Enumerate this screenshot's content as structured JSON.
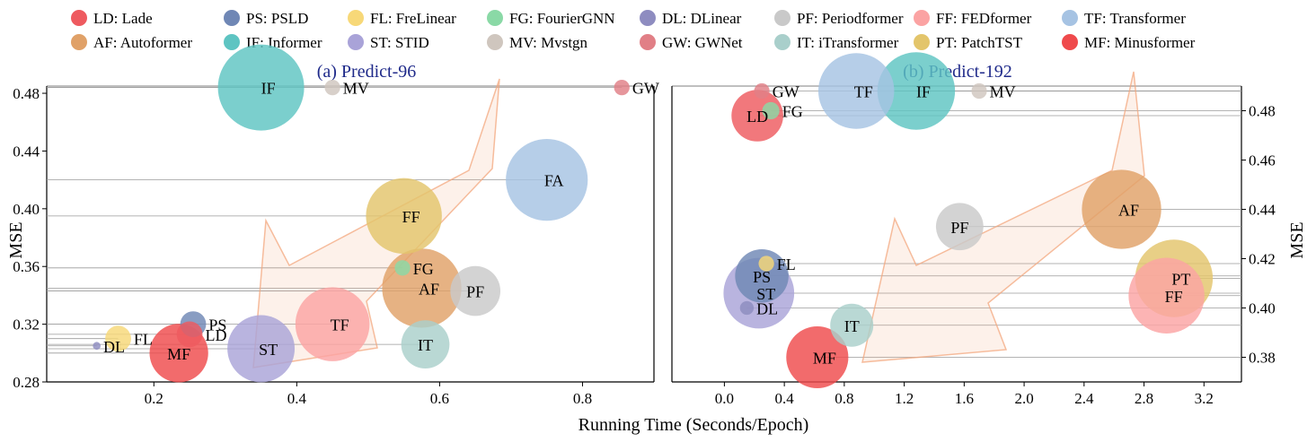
{
  "legend": [
    {
      "code": "LD",
      "label": "LD: Lade",
      "color": "#ee5a5f"
    },
    {
      "code": "PS",
      "label": "PS: PSLD",
      "color": "#6f87b5"
    },
    {
      "code": "FL",
      "label": "FL: FreLinear",
      "color": "#f7d878"
    },
    {
      "code": "FG",
      "label": "FG: FourierGNN",
      "color": "#8ad9a6"
    },
    {
      "code": "DL",
      "label": "DL: DLinear",
      "color": "#8e8cc0"
    },
    {
      "code": "PF",
      "label": "PF: Periodformer",
      "color": "#c9c9c9"
    },
    {
      "code": "FF",
      "label": "FF: FEDformer",
      "color": "#fba3a3"
    },
    {
      "code": "TF",
      "label": "TF: Transformer",
      "color": "#a6c3e3"
    },
    {
      "code": "AF",
      "label": "AF: Autoformer",
      "color": "#e0a168"
    },
    {
      "code": "IF",
      "label": "IF: Informer",
      "color": "#5ec4c2"
    },
    {
      "code": "ST",
      "label": "ST: STID",
      "color": "#a9a3d8"
    },
    {
      "code": "MV",
      "label": "MV: Mvstgn",
      "color": "#cfc6be"
    },
    {
      "code": "GW",
      "label": "GW: GWNet",
      "color": "#e17f86"
    },
    {
      "code": "IT",
      "label": "IT: iTransformer",
      "color": "#a9cfcb"
    },
    {
      "code": "PT",
      "label": "PT: PatchTST",
      "color": "#e3c56b"
    },
    {
      "code": "MF",
      "label": "MF: Minusformer",
      "color": "#ef4a4c"
    }
  ],
  "shared_xlabel": "Running Time (Seconds/Epoch)",
  "chart_data": [
    {
      "type": "scatter",
      "subtitle": "(a) Predict-96",
      "xlabel": "",
      "ylabel": "MSE",
      "xlim": [
        0.05,
        0.9
      ],
      "ylim": [
        0.28,
        0.485
      ],
      "xticks": [
        "0.2",
        "0.4",
        "0.6",
        "0.8"
      ],
      "yticks": [
        "0.28",
        "0.32",
        "0.36",
        "0.40",
        "0.44",
        "0.48"
      ],
      "yaxis_side": "left",
      "arrow_color": "#f3a77e",
      "points": [
        {
          "label": "IF",
          "x": 0.35,
          "y": 0.484,
          "size": 1.0,
          "color": "#5ec4c2"
        },
        {
          "label": "MV",
          "x": 0.45,
          "y": 0.484,
          "size": 0.18,
          "color": "#cfc6be"
        },
        {
          "label": "GW",
          "x": 0.855,
          "y": 0.484,
          "size": 0.18,
          "color": "#e17f86"
        },
        {
          "label": "FA",
          "x": 0.75,
          "y": 0.42,
          "size": 0.95,
          "color": "#a6c3e3"
        },
        {
          "label": "FF",
          "x": 0.55,
          "y": 0.395,
          "size": 0.88,
          "color": "#e3c56b"
        },
        {
          "label": "FG",
          "x": 0.548,
          "y": 0.359,
          "size": 0.18,
          "color": "#8ad9a6"
        },
        {
          "label": "AF",
          "x": 0.575,
          "y": 0.345,
          "size": 0.92,
          "color": "#e0a168"
        },
        {
          "label": "PF",
          "x": 0.65,
          "y": 0.343,
          "size": 0.58,
          "color": "#c9c9c9"
        },
        {
          "label": "PS",
          "x": 0.255,
          "y": 0.32,
          "size": 0.3,
          "color": "#6f87b5"
        },
        {
          "label": "LD",
          "x": 0.25,
          "y": 0.313,
          "size": 0.3,
          "color": "#ee5a5f"
        },
        {
          "label": "TF",
          "x": 0.45,
          "y": 0.32,
          "size": 0.86,
          "color": "#fba3a3"
        },
        {
          "label": "DL",
          "x": 0.12,
          "y": 0.305,
          "size": 0.09,
          "color": "#8e8cc0"
        },
        {
          "label": "FL",
          "x": 0.15,
          "y": 0.31,
          "size": 0.3,
          "color": "#f7d878"
        },
        {
          "label": "MF",
          "x": 0.235,
          "y": 0.3,
          "size": 0.68,
          "color": "#ef4a4c"
        },
        {
          "label": "ST",
          "x": 0.35,
          "y": 0.303,
          "size": 0.78,
          "color": "#a9a3d8"
        },
        {
          "label": "IT",
          "x": 0.58,
          "y": 0.306,
          "size": 0.56,
          "color": "#a9cfcb"
        }
      ]
    },
    {
      "type": "scatter",
      "subtitle": "(b) Predict-192",
      "xlabel": "",
      "ylabel": "MSE",
      "xlim": [
        -0.35,
        3.45
      ],
      "ylim": [
        0.37,
        0.49
      ],
      "xticks": [
        "0.0",
        "0.4",
        "0.8",
        "1.2",
        "1.6",
        "2.0",
        "2.4",
        "2.8",
        "3.2"
      ],
      "yticks": [
        "0.38",
        "0.40",
        "0.42",
        "0.44",
        "0.46",
        "0.48"
      ],
      "yaxis_side": "right",
      "arrow_color": "#f3a77e",
      "points": [
        {
          "label": "GW",
          "x": 0.25,
          "y": 0.488,
          "size": 0.18,
          "color": "#e17f86"
        },
        {
          "label": "TF",
          "x": 0.88,
          "y": 0.488,
          "size": 0.88,
          "color": "#a6c3e3"
        },
        {
          "label": "IF",
          "x": 1.28,
          "y": 0.488,
          "size": 0.9,
          "color": "#5ec4c2"
        },
        {
          "label": "MV",
          "x": 1.7,
          "y": 0.488,
          "size": 0.18,
          "color": "#cfc6be"
        },
        {
          "label": "LD",
          "x": 0.22,
          "y": 0.478,
          "size": 0.6,
          "color": "#ee5a5f"
        },
        {
          "label": "FG",
          "x": 0.31,
          "y": 0.48,
          "size": 0.2,
          "color": "#8ad9a6"
        },
        {
          "label": "PF",
          "x": 1.57,
          "y": 0.433,
          "size": 0.55,
          "color": "#c9c9c9"
        },
        {
          "label": "AF",
          "x": 2.65,
          "y": 0.44,
          "size": 0.92,
          "color": "#e0a168"
        },
        {
          "label": "FL",
          "x": 0.28,
          "y": 0.418,
          "size": 0.18,
          "color": "#f7d878"
        },
        {
          "label": "PS",
          "x": 0.25,
          "y": 0.413,
          "size": 0.62,
          "color": "#6f87b5"
        },
        {
          "label": "DL",
          "x": 0.15,
          "y": 0.4,
          "size": 0.16,
          "color": "#8e8cc0"
        },
        {
          "label": "ST",
          "x": 0.23,
          "y": 0.406,
          "size": 0.82,
          "color": "#a9a3d8"
        },
        {
          "label": "PT",
          "x": 3.0,
          "y": 0.412,
          "size": 0.9,
          "color": "#e3c56b"
        },
        {
          "label": "FF",
          "x": 2.95,
          "y": 0.405,
          "size": 0.88,
          "color": "#fba3a3"
        },
        {
          "label": "IT",
          "x": 0.85,
          "y": 0.393,
          "size": 0.5,
          "color": "#a9cfcb"
        },
        {
          "label": "MF",
          "x": 0.62,
          "y": 0.38,
          "size": 0.72,
          "color": "#ef4a4c"
        }
      ]
    }
  ]
}
